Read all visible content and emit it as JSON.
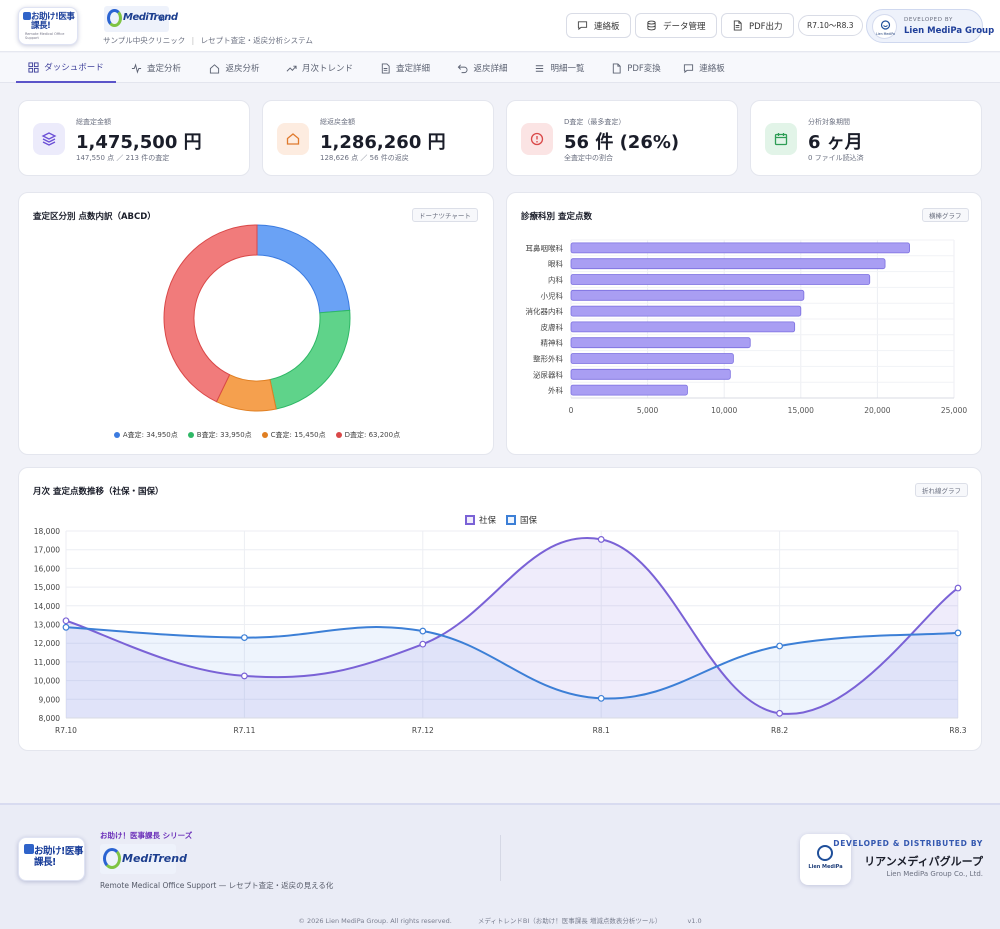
{
  "header": {
    "logo_text": "お助け!医事課長!",
    "logo_sub": "Remote Medical Office Support",
    "product_logo_text": "MediTrend",
    "product_logo_bi": "BI",
    "clinic_name": "サンプル中央クリニック",
    "system_name": "レセプト査定・返戻分析システム",
    "buttons": [
      {
        "label": "連絡板",
        "icon": "chat-icon"
      },
      {
        "label": "データ管理",
        "icon": "database-icon"
      },
      {
        "label": "PDF出力",
        "icon": "pdf-icon"
      }
    ],
    "period": "R7.10〜R8.3",
    "developer": {
      "label": "DEVELOPED BY",
      "name": "Lien MediPa Group",
      "logo_text": "Lien MediPa"
    }
  },
  "nav": {
    "tabs": [
      {
        "label": "ダッシュボード",
        "icon": "grid-icon",
        "active": true
      },
      {
        "label": "査定分析",
        "icon": "pulse-icon",
        "active": false
      },
      {
        "label": "返戻分析",
        "icon": "home-icon",
        "active": false
      },
      {
        "label": "月次トレンド",
        "icon": "trend-icon",
        "active": false
      },
      {
        "label": "査定詳細",
        "icon": "document-icon",
        "active": false
      },
      {
        "label": "返戻詳細",
        "icon": "return-icon",
        "active": false
      },
      {
        "label": "明細一覧",
        "icon": "list-icon",
        "active": false
      },
      {
        "label": "PDF変換",
        "icon": "file-icon",
        "active": false
      },
      {
        "label": "連絡板",
        "icon": "chat-icon",
        "active": false
      }
    ]
  },
  "kpis": [
    {
      "label": "総査定金額",
      "value": "1,475,500 円",
      "sub": "147,550 点 ／ 213 件の査定",
      "icon": "layers-icon",
      "color": "#6b4fd6",
      "bg": "#ecebfb"
    },
    {
      "label": "総返戻金額",
      "value": "1,286,260 円",
      "sub": "128,626 点 ／ 56 件の返戻",
      "icon": "home-icon",
      "color": "#e07a2d",
      "bg": "#fdece0"
    },
    {
      "label": "D査定（最多査定）",
      "value": "56 件 (26%)",
      "sub": "全査定中の割合",
      "icon": "alert-icon",
      "color": "#d94848",
      "bg": "#fbe4e4"
    },
    {
      "label": "分析対象期間",
      "value": "6 ヶ月",
      "sub": "0 ファイル読込済",
      "icon": "calendar-icon",
      "color": "#2e9d55",
      "bg": "#e2f4e8"
    }
  ],
  "donut_card": {
    "title": "査定区分別 点数内訳（ABCD）",
    "tag": "ドーナツチャート"
  },
  "bar_card": {
    "title": "診療科別 査定点数",
    "tag": "横棒グラフ"
  },
  "line_card": {
    "title": "月次 査定点数推移（社保・国保）",
    "tag": "折れ線グラフ"
  },
  "chart_data": [
    {
      "type": "pie",
      "variant": "donut",
      "categories": [
        "A査定",
        "B査定",
        "C査定",
        "D査定"
      ],
      "values": [
        34950,
        33950,
        15450,
        63200
      ],
      "legend_labels": [
        "A査定: 34,950点",
        "B査定: 33,950点",
        "C査定: 15,450点",
        "D査定: 63,200点"
      ],
      "colors": [
        "#6aa2f5",
        "#5fd38a",
        "#f5a04e",
        "#f17b7b"
      ],
      "stroke_colors": [
        "#3b7be0",
        "#2fb866",
        "#e07f22",
        "#d94848"
      ],
      "legend_dot_colors": [
        "#3b7be0",
        "#2fb866",
        "#e07f22",
        "#d94848"
      ],
      "legend": "bottom"
    },
    {
      "type": "bar",
      "orientation": "horizontal",
      "categories": [
        "耳鼻咽喉科",
        "眼科",
        "内科",
        "小児科",
        "消化器内科",
        "皮膚科",
        "精神科",
        "整形外科",
        "泌尿器科",
        "外科"
      ],
      "values": [
        22100,
        20500,
        19500,
        15200,
        15000,
        14600,
        11700,
        10600,
        10400,
        7600
      ],
      "xlim": [
        0,
        25000
      ],
      "xticks": [
        "0",
        "5,000",
        "10,000",
        "15,000",
        "20,000",
        "25,000"
      ],
      "bar_color": "#a99ef3",
      "bar_stroke": "#7b6fe0",
      "grid": true
    },
    {
      "type": "line",
      "x": [
        "R7.10",
        "R7.11",
        "R7.12",
        "R8.1",
        "R8.2",
        "R8.3"
      ],
      "series": [
        {
          "name": "社保",
          "values": [
            13200,
            10250,
            11950,
            17550,
            8250,
            14950
          ],
          "color": "#7a62d6",
          "fill": "rgba(150,130,230,0.15)"
        },
        {
          "name": "国保",
          "values": [
            12850,
            12300,
            12650,
            9050,
            11850,
            12550
          ],
          "color": "#3c7fd6",
          "fill": "rgba(120,170,240,0.13)"
        }
      ],
      "ylim": [
        8000,
        18000
      ],
      "yticks": [
        "8,000",
        "9,000",
        "10,000",
        "11,000",
        "12,000",
        "13,000",
        "14,000",
        "15,000",
        "16,000",
        "17,000",
        "18,000"
      ],
      "grid": true,
      "legend": "top"
    }
  ],
  "footer": {
    "logo_text": "お助け!医事課長!",
    "series": "お助け！医事課長 シリーズ",
    "product_logo_text": "MediTrend",
    "remote": "Remote Medical Office Support — レセプト査定・返戻の見える化",
    "dev_label": "DEVELOPED & DISTRIBUTED BY",
    "group_name": "リアンメディパグループ",
    "company": "Lien MediPa Group Co., Ltd.",
    "ld_logo_text": "Lien MediPa",
    "copyright": "© 2026 Lien MediPa Group. All rights reserved.",
    "tool_name": "メディトレンドBI（お助け！医事課長 増減点数表分析ツール）",
    "version": "v1.0"
  }
}
